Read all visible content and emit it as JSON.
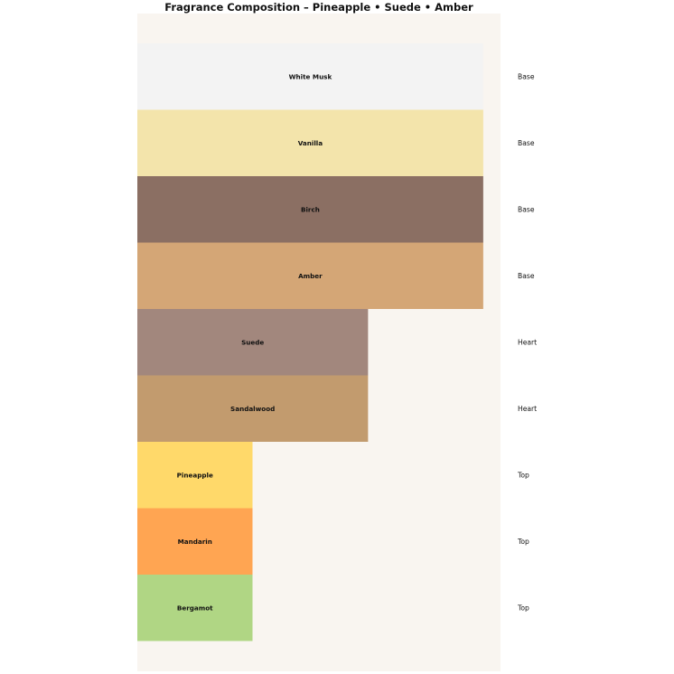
{
  "chart_data": {
    "type": "bar",
    "orientation": "horizontal",
    "title": "Fragrance Composition – Pineapple • Suede • Amber",
    "xlabel": "",
    "ylabel": "",
    "grid": false,
    "xlim": [
      0,
      105
    ],
    "categories": [
      "White Musk",
      "Vanilla",
      "Birch",
      "Amber",
      "Suede",
      "Sandalwood",
      "Pineapple",
      "Mandarin",
      "Bergamot"
    ],
    "values": [
      100,
      100,
      100,
      100,
      66.7,
      66.7,
      33.3,
      33.3,
      33.3
    ],
    "tiers": [
      "Base",
      "Base",
      "Base",
      "Base",
      "Heart",
      "Heart",
      "Top",
      "Top",
      "Top"
    ],
    "colors": [
      "#f3f3f3",
      "#f3e4ab",
      "#8b6f63",
      "#d4a676",
      "#a2877d",
      "#c29b6e",
      "#ffd96a",
      "#ffa552",
      "#b0d684"
    ],
    "background": "#f9f5f0"
  }
}
